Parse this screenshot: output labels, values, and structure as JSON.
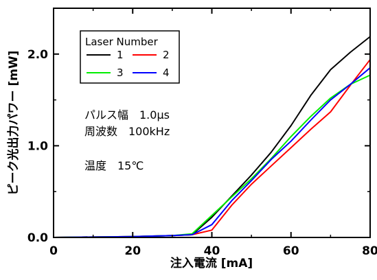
{
  "chart_data": {
    "type": "line",
    "xlabel": "注入電流 [mA]",
    "ylabel": "ピーク光出力パワー [mW]",
    "xlim": [
      0,
      80
    ],
    "ylim": [
      0,
      2.5
    ],
    "x_ticks": [
      "0",
      "20",
      "40",
      "60",
      "80"
    ],
    "y_ticks": [
      "0.0",
      "1.0",
      "2.0"
    ],
    "grid": false,
    "legend": {
      "title": "Laser Number",
      "placement": "top-left"
    },
    "series": [
      {
        "name": "1",
        "color": "#000000",
        "points": [
          [
            0,
            0
          ],
          [
            20,
            0.01
          ],
          [
            30,
            0.02
          ],
          [
            35,
            0.03
          ],
          [
            40,
            0.22
          ],
          [
            45,
            0.45
          ],
          [
            50,
            0.68
          ],
          [
            55,
            0.93
          ],
          [
            60,
            1.22
          ],
          [
            65,
            1.55
          ],
          [
            70,
            1.83
          ],
          [
            75,
            2.02
          ],
          [
            80,
            2.19
          ]
        ]
      },
      {
        "name": "2",
        "color": "#ff0000",
        "points": [
          [
            0,
            0
          ],
          [
            20,
            0.01
          ],
          [
            30,
            0.02
          ],
          [
            35,
            0.03
          ],
          [
            40,
            0.08
          ],
          [
            45,
            0.35
          ],
          [
            50,
            0.58
          ],
          [
            55,
            0.78
          ],
          [
            60,
            0.98
          ],
          [
            65,
            1.18
          ],
          [
            70,
            1.37
          ],
          [
            75,
            1.66
          ],
          [
            80,
            1.94
          ]
        ]
      },
      {
        "name": "3",
        "color": "#00ee00",
        "points": [
          [
            0,
            0
          ],
          [
            20,
            0.01
          ],
          [
            30,
            0.02
          ],
          [
            35,
            0.04
          ],
          [
            40,
            0.24
          ],
          [
            45,
            0.44
          ],
          [
            50,
            0.64
          ],
          [
            55,
            0.86
          ],
          [
            60,
            1.1
          ],
          [
            65,
            1.32
          ],
          [
            70,
            1.52
          ],
          [
            75,
            1.67
          ],
          [
            80,
            1.77
          ]
        ]
      },
      {
        "name": "4",
        "color": "#0000ff",
        "points": [
          [
            0,
            0
          ],
          [
            20,
            0.01
          ],
          [
            30,
            0.02
          ],
          [
            35,
            0.03
          ],
          [
            40,
            0.14
          ],
          [
            45,
            0.4
          ],
          [
            50,
            0.62
          ],
          [
            55,
            0.85
          ],
          [
            60,
            1.05
          ],
          [
            65,
            1.28
          ],
          [
            70,
            1.5
          ],
          [
            75,
            1.67
          ],
          [
            80,
            1.85
          ]
        ]
      }
    ],
    "annotations": [
      {
        "key": "pulse",
        "text": "パルス幅　1.0μs"
      },
      {
        "key": "freq",
        "text": "周波数　100kHz"
      },
      {
        "key": "temp",
        "text": "温度　15℃"
      }
    ]
  }
}
